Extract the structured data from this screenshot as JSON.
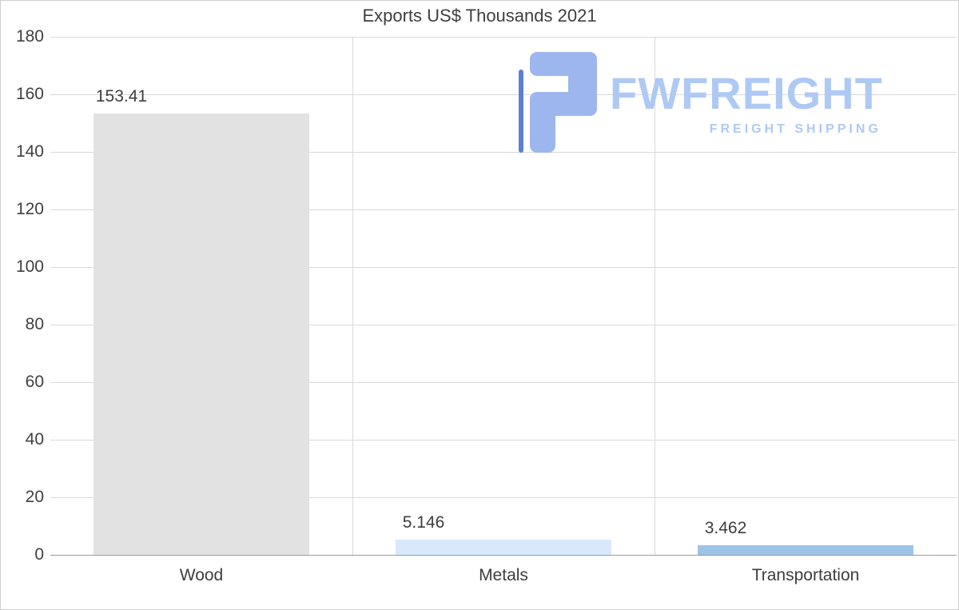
{
  "title": "Exports US$ Thousands 2021",
  "watermark": {
    "brand": "FWFREIGHT",
    "tagline": "FREIGHT SHIPPING",
    "logo_icon": "stylized-f-logo",
    "logo_color": "#9db7ee",
    "logo_accent_color": "#5a7fd8",
    "text_color": "#aec9f3"
  },
  "chart_data": {
    "type": "bar",
    "title": "Exports US$ Thousands 2021",
    "categories": [
      "Wood",
      "Metals",
      "Transportation"
    ],
    "values": [
      153.41,
      5.146,
      3.462
    ],
    "value_labels": [
      "153.41",
      "5.146",
      "3.462"
    ],
    "bar_colors": [
      "#e2e2e2",
      "#d7e9fb",
      "#9dc3e8"
    ],
    "xlabel": "",
    "ylabel": "",
    "ylim": [
      0,
      180
    ],
    "ytick_step": 20,
    "ytick_labels": [
      "0",
      "20",
      "40",
      "60",
      "80",
      "100",
      "120",
      "140",
      "160",
      "180"
    ],
    "grid": true,
    "legend": "none"
  }
}
